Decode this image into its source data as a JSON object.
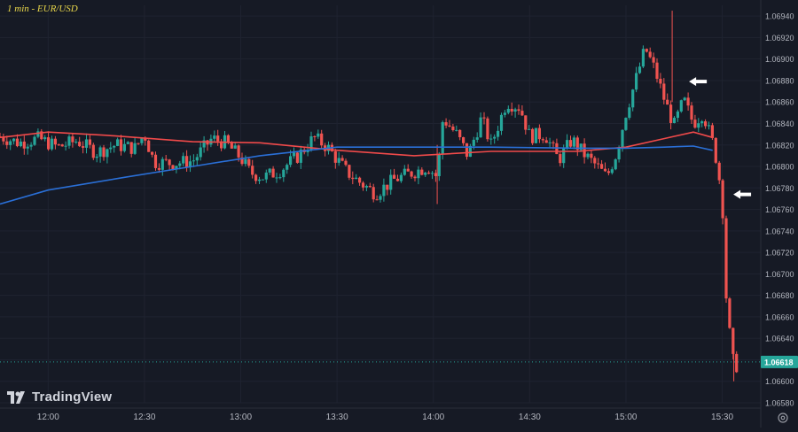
{
  "chart_data": {
    "type": "candlestick",
    "title": "1 min - EUR/USD",
    "timeframe": "1 min",
    "symbol": "EUR/USD",
    "ylim": [
      1.0658,
      1.0695
    ],
    "y_ticks": [
      "1.06940",
      "1.06920",
      "1.06900",
      "1.06880",
      "1.06860",
      "1.06840",
      "1.06820",
      "1.06800",
      "1.06780",
      "1.06760",
      "1.06740",
      "1.06720",
      "1.06700",
      "1.06680",
      "1.06660",
      "1.06640",
      "1.06620",
      "1.06600",
      "1.06580"
    ],
    "x_ticks": [
      "12:00",
      "12:30",
      "13:00",
      "13:30",
      "14:00",
      "14:30",
      "15:00",
      "15:30"
    ],
    "last_price": "1.06618",
    "colors": {
      "up": "#26a69a",
      "down": "#ef5350",
      "ma_red": "#f04a4a",
      "ma_blue": "#2a6fd6",
      "background": "#161a25",
      "grid": "#1f2330",
      "title": "#e8d64a",
      "last_price_label": "#26a69a"
    },
    "grid": true,
    "moving_averages": [
      {
        "color": "red",
        "points": [
          [
            11.75,
            1.06827
          ],
          [
            12.0,
            1.06832
          ],
          [
            12.3,
            1.06829
          ],
          [
            12.75,
            1.06823
          ],
          [
            13.1,
            1.06822
          ],
          [
            13.5,
            1.06815
          ],
          [
            13.9,
            1.0681
          ],
          [
            14.3,
            1.06814
          ],
          [
            14.75,
            1.06814
          ],
          [
            15.0,
            1.06818
          ],
          [
            15.2,
            1.06826
          ],
          [
            15.35,
            1.06832
          ],
          [
            15.45,
            1.06827
          ]
        ]
      },
      {
        "color": "blue",
        "points": [
          [
            11.75,
            1.06765
          ],
          [
            12.0,
            1.06778
          ],
          [
            12.4,
            1.0679
          ],
          [
            12.75,
            1.068
          ],
          [
            13.1,
            1.0681
          ],
          [
            13.5,
            1.06818
          ],
          [
            13.9,
            1.06818
          ],
          [
            14.3,
            1.06818
          ],
          [
            14.75,
            1.06817
          ],
          [
            15.0,
            1.06817
          ],
          [
            15.2,
            1.06818
          ],
          [
            15.35,
            1.06819
          ],
          [
            15.45,
            1.06815
          ]
        ]
      }
    ],
    "candles_path": [
      [
        11.75,
        1.06828
      ],
      [
        11.85,
        1.06822
      ],
      [
        11.95,
        1.06826
      ],
      [
        12.05,
        1.06818
      ],
      [
        12.15,
        1.06824
      ],
      [
        12.25,
        1.06813
      ],
      [
        12.35,
        1.0682
      ],
      [
        12.45,
        1.06817
      ],
      [
        12.5,
        1.0683
      ],
      [
        12.55,
        1.06804
      ],
      [
        12.65,
        1.06803
      ],
      [
        12.75,
        1.06805
      ],
      [
        12.85,
        1.06826
      ],
      [
        12.92,
        1.06822
      ],
      [
        13.0,
        1.06808
      ],
      [
        13.05,
        1.06794
      ],
      [
        13.12,
        1.0679
      ],
      [
        13.2,
        1.06796
      ],
      [
        13.3,
        1.0681
      ],
      [
        13.38,
        1.06827
      ],
      [
        13.45,
        1.06818
      ],
      [
        13.55,
        1.06795
      ],
      [
        13.62,
        1.06785
      ],
      [
        13.7,
        1.06775
      ],
      [
        13.8,
        1.06788
      ],
      [
        13.9,
        1.06795
      ],
      [
        13.97,
        1.068
      ],
      [
        14.02,
        1.0679
      ],
      [
        14.05,
        1.06845
      ],
      [
        14.12,
        1.0683
      ],
      [
        14.18,
        1.0681
      ],
      [
        14.25,
        1.06845
      ],
      [
        14.3,
        1.0682
      ],
      [
        14.38,
        1.0686
      ],
      [
        14.45,
        1.06855
      ],
      [
        14.5,
        1.06828
      ],
      [
        14.58,
        1.0683
      ],
      [
        14.65,
        1.06806
      ],
      [
        14.72,
        1.06825
      ],
      [
        14.78,
        1.06812
      ],
      [
        14.85,
        1.068
      ],
      [
        14.9,
        1.0679
      ],
      [
        14.95,
        1.06812
      ],
      [
        15.0,
        1.0685
      ],
      [
        15.05,
        1.0688
      ],
      [
        15.1,
        1.0691
      ],
      [
        15.15,
        1.0689
      ],
      [
        15.2,
        1.06862
      ],
      [
        15.25,
        1.06838
      ],
      [
        15.3,
        1.06862
      ],
      [
        15.35,
        1.0684
      ],
      [
        15.4,
        1.0685
      ],
      [
        15.45,
        1.06822
      ],
      [
        15.47,
        1.06806
      ],
      [
        15.5,
        1.0677
      ],
      [
        15.52,
        1.0668
      ],
      [
        15.55,
        1.06622
      ],
      [
        15.57,
        1.06612
      ],
      [
        15.58,
        1.06618
      ]
    ],
    "arrows": [
      {
        "x": 15.3,
        "y": 1.06879
      },
      {
        "x": 15.53,
        "y": 1.06774
      }
    ]
  },
  "watermark": {
    "text": "TradingView"
  },
  "icons": {
    "settings": "gear-icon",
    "logo": "tradingview-logo-icon",
    "arrow": "arrow-left-icon"
  }
}
